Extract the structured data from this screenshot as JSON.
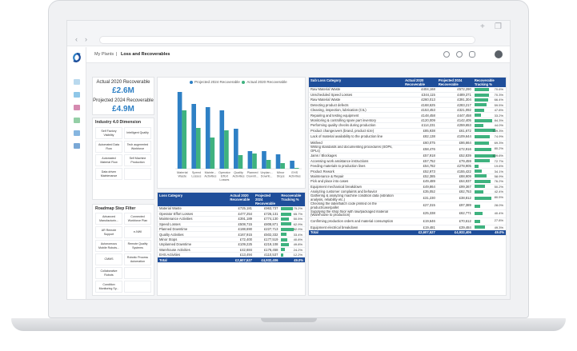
{
  "colors": {
    "brand": "#1f4e9a",
    "bar_blue": "#2e80c5",
    "bar_green": "#3fb27f"
  },
  "breadcrumb": {
    "parent": "My Plants",
    "separator": "|",
    "current": "Loss and Recoverables"
  },
  "header_icons": [
    "bell-icon",
    "help-icon",
    "chat-icon",
    "avatar"
  ],
  "kpi": [
    {
      "label": "Actual 2020 Recoverable",
      "value": "£2.6M"
    },
    {
      "label": "Projected 2024 Recoverable",
      "value": "£4.9M"
    }
  ],
  "industry_filter": {
    "title": "Industry 4.0 Dimension",
    "items": [
      "Self Factory Visibility",
      "Intelligent Quality",
      "Automated Data Flow",
      "Tech augmented Workforce",
      "Automated Material Flow",
      "Self Machine Production",
      "Data driven Maintenance",
      ""
    ]
  },
  "roadmap_filter": {
    "title": "Roadmap Step Filter",
    "items": [
      "Advanced Manufacturin...",
      "Connected Workforce Plan",
      "AR Remote Support",
      "e-NWI",
      "Autonomous Mobile Robots...",
      "Remote Quality Systems",
      "CMMS",
      "Robotic Process Automation",
      "Collaborative Robots",
      "",
      "Condition Monitoring Sy...",
      ""
    ]
  },
  "chart_data": {
    "type": "bar",
    "title": "",
    "legend": [
      "Projected 2024 Recoverable",
      "Actual 2020 Recoverable"
    ],
    "categories": [
      "Material Waste",
      "Speed Losses",
      "Mainte... Activities",
      "Operator Effort Losses",
      "Quality Activities",
      "Planned Downti...",
      "Unplan... Downti...",
      "Minor Stops",
      "EHS Activities"
    ],
    "series": [
      {
        "name": "Projected 2024 Recoverable",
        "values": [
          0.96,
          0.81,
          0.77,
          0.73,
          0.5,
          0.22,
          0.22,
          0.18,
          0.1
        ]
      },
      {
        "name": "Actual 2020 Recoverable",
        "values": [
          0.73,
          0.51,
          0.39,
          0.48,
          0.17,
          0.19,
          0.11,
          0.07,
          0.01
        ]
      }
    ],
    "ylim": [
      0,
      1
    ]
  },
  "loss_table": {
    "headers": [
      "Loss Category",
      "Actual 2020 Recoverable",
      "Projected 2024 Recoverable",
      "Recoverable Tracking %"
    ],
    "rows": [
      [
        "Material Waste",
        "£725,181",
        "£963,737",
        "75.2%",
        0.752
      ],
      [
        "Operator Effort Losses",
        "£477,254",
        "£726,131",
        "65.7%",
        0.657
      ],
      [
        "Maintenance Activities",
        "£391,189",
        "£774,130",
        "50.5%",
        0.505
      ],
      [
        "Speed Losses",
        "£508,715",
        "£808,871",
        "62.9%",
        0.629
      ],
      [
        "Planned Downtime",
        "£188,690",
        "£227,713",
        "82.9%",
        0.829
      ],
      [
        "Quality Activities",
        "£167,915",
        "£502,332",
        "33.4%",
        0.334
      ],
      [
        "Minor Stops",
        "£72,400",
        "£177,519",
        "40.8%",
        0.408
      ],
      [
        "Unplanned Downtime",
        "£109,225",
        "£219,108",
        "49.8%",
        0.498
      ],
      [
        "Warehouse Activities",
        "£42,684",
        "£176,458",
        "24.2%",
        0.242
      ],
      [
        "EHS Activities",
        "£13,494",
        "£110,537",
        "12.2%",
        0.122
      ]
    ],
    "total": [
      "Total",
      "£2,607,527",
      "£4,932,406",
      "49.0%"
    ]
  },
  "subloss_table": {
    "headers": [
      "Sub Loss Category",
      "Actual 2020 Recoverable",
      "Projected 2024 Recoverable",
      "Recoverable Tracking %"
    ],
    "rows": [
      [
        "Raw Material Waste",
        "£404,168",
        "£572,290",
        "70.6%",
        0.706
      ],
      [
        "Unscheduled Speed Losses",
        "£344,115",
        "£489,371",
        "70.3%",
        0.703
      ],
      [
        "Raw Material Waste",
        "£260,013",
        "£391,304",
        "66.4%",
        0.664
      ],
      [
        "Detecting product defects",
        "£168,625",
        "£283,217",
        "59.5%",
        0.595
      ],
      [
        "Cleaning, inspection, lubrication (CIL)",
        "£153,453",
        "£321,092",
        "47.8%",
        0.478
      ],
      [
        "Repairing and testing equipment",
        "£148,458",
        "£447,458",
        "33.2%",
        0.332
      ],
      [
        "Monitoring & controlling spare part inventory",
        "£120,009",
        "£142,405",
        "84.3%",
        0.843
      ],
      [
        "Performing quality checks during production",
        "£114,231",
        "£259,653",
        "44.0%",
        0.44
      ],
      [
        "Product changeovers (brand, product size)",
        "£85,938",
        "£61,672",
        "139.3%",
        1.0
      ],
      [
        "Lack of material availability to the production line",
        "£82,138",
        "£109,644",
        "74.9%",
        0.749
      ],
      [
        "Misfeed",
        "£60,075",
        "£86,664",
        "69.3%",
        0.693
      ],
      [
        "Writing standards and documenting procedures (SOPs, OPLs)",
        "£58,476",
        "£72,916",
        "80.2%",
        0.802
      ],
      [
        "Jams / Blockages",
        "£57,918",
        "£52,839",
        "109.6%",
        1.0
      ],
      [
        "Accessing work assistance instructions",
        "£57,752",
        "£79,459",
        "72.7%",
        0.727
      ],
      [
        "Feeding materials to production lines",
        "£54,782",
        "£278,905",
        "19.6%",
        0.196
      ],
      [
        "Product Rework",
        "£52,973",
        "£155,422",
        "34.1%",
        0.341
      ],
      [
        "Maintenance & Repair",
        "£52,385",
        "£88,909",
        "58.9%",
        0.589
      ],
      [
        "Pick and place into cases",
        "£49,489",
        "£64,937",
        "76.2%",
        0.762
      ],
      [
        "Equipment mechanical breakdown",
        "£49,864",
        "£99,367",
        "50.2%",
        0.502
      ],
      [
        "Analyzing customer complaints and behavior",
        "£35,052",
        "£82,753",
        "42.4%",
        0.424
      ],
      [
        "Gathering & analyzing machine condition data (vibration analysis, reliability etc.)",
        "£31,230",
        "£38,812",
        "80.5%",
        0.805
      ],
      [
        "Checking the label/batch code printed on the product/case/pallet",
        "£27,315",
        "£97,389",
        "28.0%",
        0.28
      ],
      [
        "Supplying the shop floor with raw/packaged material (Warehouse to production)",
        "£25,338",
        "£62,771",
        "40.4%",
        0.404
      ],
      [
        "Confirming production orders and material consumption",
        "£19,646",
        "£70,612",
        "27.8%",
        0.278
      ],
      [
        "Equipment electrical breakdown",
        "£19,481",
        "£39,484",
        "49.3%",
        0.493
      ]
    ],
    "total": [
      "Total",
      "£2,607,527",
      "£4,932,406",
      "49.0%"
    ]
  }
}
